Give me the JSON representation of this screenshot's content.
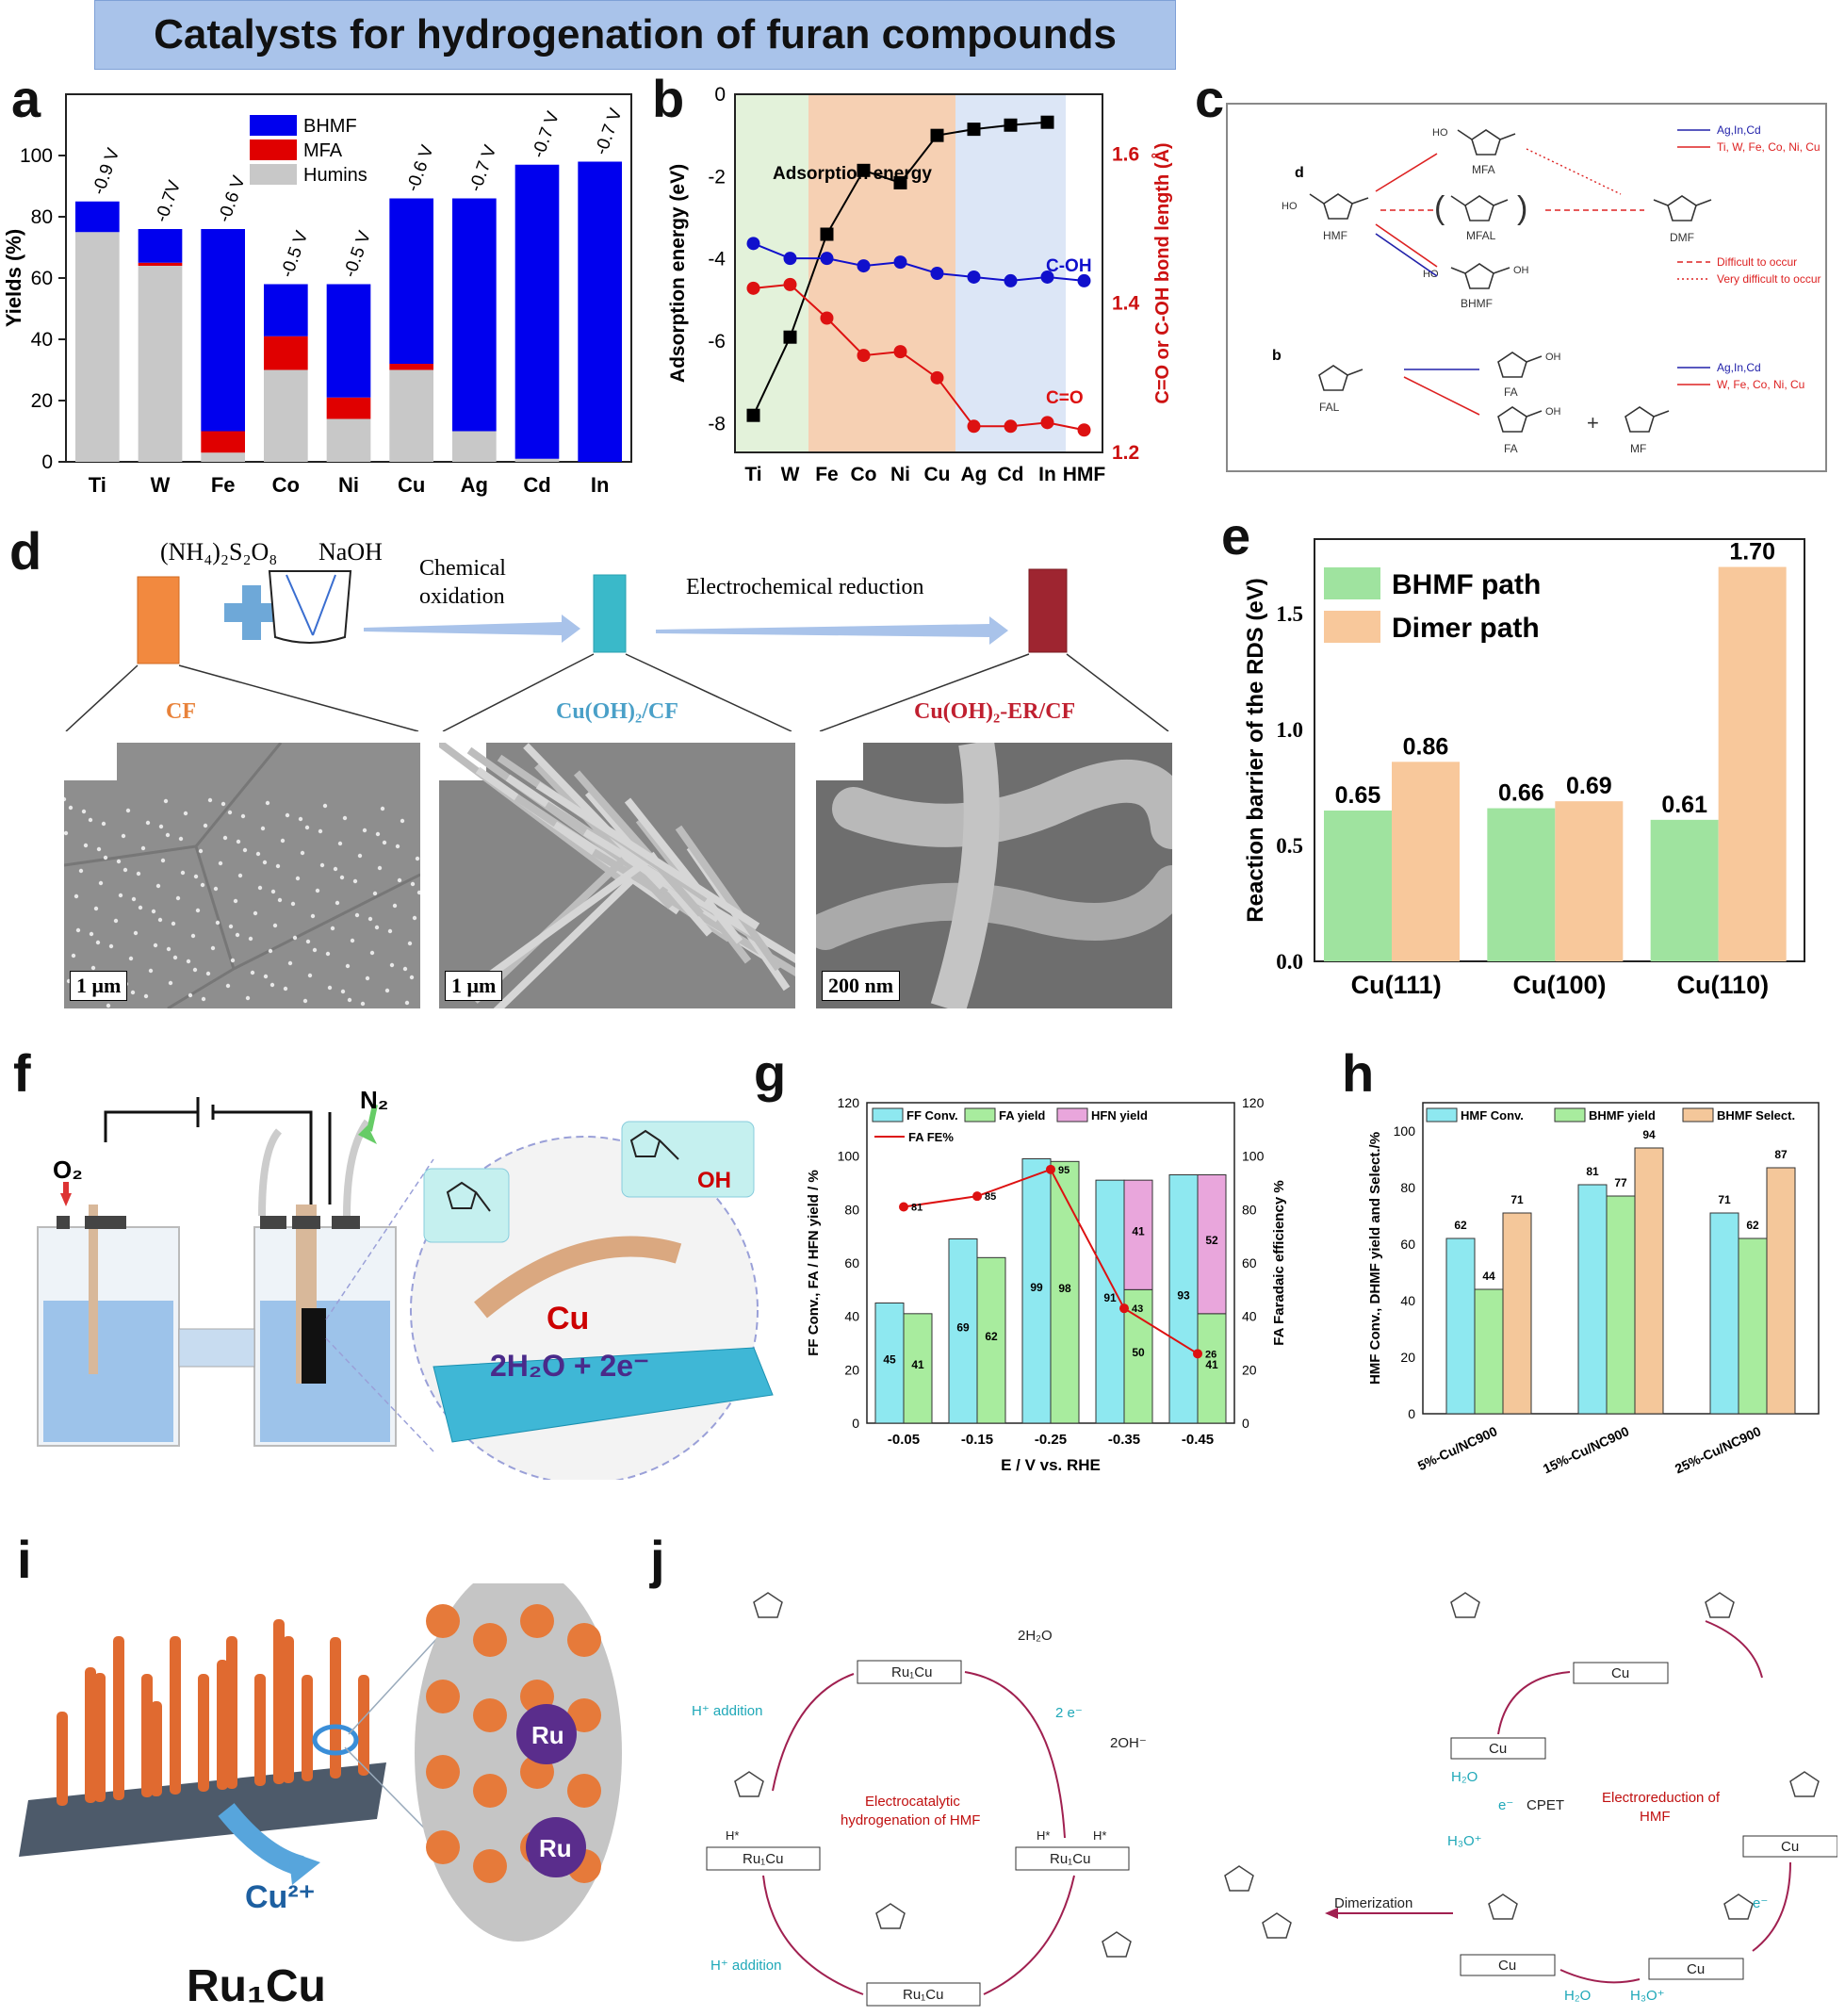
{
  "banner": {
    "title": "Catalysts for hydrogenation of furan compounds"
  },
  "panel_labels": {
    "a": "a",
    "b": "b",
    "c": "c",
    "d": "d",
    "e": "e",
    "f": "f",
    "g": "g",
    "h": "h",
    "i": "i",
    "j": "j"
  },
  "chart_data": [
    {
      "id": "a",
      "type": "bar",
      "stacked": true,
      "categories": [
        "Ti",
        "W",
        "Fe",
        "Co",
        "Ni",
        "Cu",
        "Ag",
        "Cd",
        "In"
      ],
      "series": [
        {
          "name": "Humins",
          "values": [
            75,
            64,
            3,
            30,
            14,
            30,
            10,
            1,
            0
          ],
          "color": "#c8c8c8"
        },
        {
          "name": "MFA",
          "values": [
            0,
            1,
            7,
            11,
            7,
            2,
            0,
            0,
            0
          ],
          "color": "#e00000"
        },
        {
          "name": "BHMF",
          "values": [
            10,
            11,
            66,
            17,
            37,
            54,
            76,
            96,
            98
          ],
          "color": "#0000ee"
        }
      ],
      "bar_labels": [
        "-0.9 V",
        "-0.7V",
        "-0.6 V",
        "-0.5 V",
        "-0.5 V",
        "-0.6 V",
        "-0.7 V",
        "-0.7 V",
        "-0.7 V"
      ],
      "ylabel": "Yields (%)",
      "ylim": [
        0,
        120
      ],
      "yticks": [
        0,
        20,
        40,
        60,
        80,
        100
      ],
      "legend": [
        "BHMF",
        "MFA",
        "Humins"
      ]
    },
    {
      "id": "b",
      "type": "line",
      "categories": [
        "Ti",
        "W",
        "Fe",
        "Co",
        "Ni",
        "Cu",
        "Ag",
        "Cd",
        "In",
        "HMF"
      ],
      "series": [
        {
          "name": "Adsorption energy",
          "axis": "left",
          "values": [
            -7.8,
            -5.9,
            -3.4,
            -1.85,
            -2.15,
            -1.0,
            -0.85,
            -0.75,
            -0.68,
            null
          ],
          "color": "#000000"
        },
        {
          "name": "C-OH",
          "axis": "right",
          "values": [
            1.48,
            1.46,
            1.46,
            1.45,
            1.455,
            1.44,
            1.435,
            1.43,
            1.435,
            1.43
          ],
          "color": "#1010cc"
        },
        {
          "name": "C=O",
          "axis": "right",
          "values": [
            1.42,
            1.425,
            1.38,
            1.33,
            1.335,
            1.3,
            1.235,
            1.235,
            1.24,
            1.23
          ],
          "color": "#dd1111"
        }
      ],
      "annotations": [
        "Adsorption energy",
        "C-OH",
        "C=O"
      ],
      "ylabel": "Adsorption energy (eV)",
      "ylim": [
        -8.7,
        0
      ],
      "yticks": [
        0,
        -2,
        -4,
        -6,
        -8
      ],
      "y2label": "C=O or C-OH bond length (Å)",
      "y2lim": [
        1.2,
        1.68
      ],
      "y2ticks": [
        1.2,
        1.4,
        1.6
      ]
    },
    {
      "id": "e",
      "type": "bar",
      "categories": [
        "Cu(111)",
        "Cu(100)",
        "Cu(110)"
      ],
      "series": [
        {
          "name": "BHMF path",
          "values": [
            0.65,
            0.66,
            0.61
          ],
          "color": "#9fe39f"
        },
        {
          "name": "Dimer path",
          "values": [
            0.86,
            0.69,
            1.7
          ],
          "color": "#f8c89b"
        }
      ],
      "value_labels": [
        [
          "0.65",
          "0.86"
        ],
        [
          "0.66",
          "0.69"
        ],
        [
          "0.61",
          "1.70"
        ]
      ],
      "ylabel": "Reaction barrier of the RDS (eV)",
      "ylim": [
        0,
        1.82
      ],
      "yticks": [
        "0.0",
        "0.5",
        "1.0",
        "1.5"
      ]
    },
    {
      "id": "g",
      "type": "bar",
      "categories": [
        "-0.05",
        "-0.15",
        "-0.25",
        "-0.35",
        "-0.45"
      ],
      "series": [
        {
          "name": "FF Conv.",
          "values": [
            45,
            69,
            99,
            91,
            93
          ],
          "color": "#8ee8f0"
        },
        {
          "name": "FA yield",
          "values": [
            41,
            62,
            98,
            50,
            41
          ],
          "color": "#a8ec9e"
        },
        {
          "name": "HFN yield",
          "values": [
            0,
            0,
            0,
            41,
            52
          ],
          "color": "#e9a6dc"
        }
      ],
      "line": {
        "name": "FA FE%",
        "values": [
          81,
          85,
          95,
          43,
          26
        ],
        "color": "#dd1111"
      },
      "bar_labels": [
        [
          "45",
          "41"
        ],
        [
          "69",
          "62"
        ],
        [
          "99",
          "98"
        ],
        [
          "91",
          "50",
          "41"
        ],
        [
          "93",
          "41",
          "52"
        ]
      ],
      "line_labels": [
        "81",
        "85",
        "95",
        "43",
        "26"
      ],
      "xlabel": "E / V vs. RHE",
      "ylabel": "FF Conv., FA / HFN yield / %",
      "y2label": "FA Faradaic efficiency %",
      "ylim": [
        0,
        120
      ],
      "yticks": [
        0,
        20,
        40,
        60,
        80,
        100,
        120
      ]
    },
    {
      "id": "h",
      "type": "bar",
      "categories": [
        "5%-Cu/NC900",
        "15%-Cu/NC900",
        "25%-Cu/NC900"
      ],
      "series": [
        {
          "name": "HMF Conv.",
          "values": [
            62,
            81,
            71
          ],
          "color": "#8ee8f0"
        },
        {
          "name": "BHMF yield",
          "values": [
            44,
            77,
            62
          ],
          "color": "#a8ec9e"
        },
        {
          "name": "BHMF Select.",
          "values": [
            71,
            94,
            87
          ],
          "color": "#f4c79a"
        }
      ],
      "value_labels": [
        [
          "62",
          "44",
          "71"
        ],
        [
          "81",
          "77",
          "94"
        ],
        [
          "71",
          "62",
          "87"
        ]
      ],
      "ylabel": "HMF Conv., DHMF yield and Select./%",
      "ylim": [
        0,
        110
      ],
      "yticks": [
        0,
        20,
        40,
        60,
        80,
        100
      ]
    }
  ],
  "panel_c": {
    "d_label": "d",
    "b_label": "b",
    "molecules": {
      "mfa": "MFA",
      "hmf": "HMF",
      "mfal": "MFAL",
      "dmf": "DMF",
      "bhmf": "BHMF",
      "fal": "FAL",
      "fa1": "FA",
      "fa2": "FA",
      "mf": "MF"
    },
    "ho": "HO",
    "oh": "OH",
    "paren_l": "(",
    "paren_r": ")",
    "plus": "+",
    "legend_d": [
      "Ag,In,Cd",
      "Ti, W, Fe, Co, Ni, Cu",
      "Difficult to occur",
      "Very difficult to occur"
    ],
    "legend_b": [
      "Ag,In,Cd",
      "W, Fe, Co, Ni, Cu"
    ]
  },
  "panel_d": {
    "reagent1": "(NH₄)₂S₂O₈",
    "reagent2": "NaOH",
    "step1": [
      "Chemical",
      "oxidation"
    ],
    "step2": "Electrochemical reduction",
    "samples": [
      "CF",
      "Cu(OH)₂/CF",
      "Cu(OH)₂-ER/CF"
    ],
    "scale": [
      "1 μm",
      "1 μm",
      "200 nm"
    ]
  },
  "panel_f": {
    "o2": "O₂",
    "n2": "N₂",
    "cu": "Cu",
    "reaction": "2H₂O + 2e⁻",
    "oh": "OH"
  },
  "panel_i": {
    "ion": "Cu²⁺",
    "ru1": "Ru",
    "ru2": "Ru",
    "caption": "Ru₁Cu"
  },
  "panel_j": {
    "left": {
      "box1": "Ru₁Cu",
      "box2": "Ru₁Cu",
      "box3": "Ru₁Cu",
      "box4": "Ru₁Cu",
      "water": "2H₂O",
      "electrons": "2 e⁻",
      "hydroxide": "2OH⁻",
      "h_add1": "H⁺ addition",
      "h_add2": "H⁺ addition",
      "center": [
        "Electrocatalytic",
        "hydrogenation of HMF"
      ],
      "hstar": "H*"
    },
    "right": {
      "box1": "Cu",
      "box2": "Cu",
      "box3": "Cu",
      "box4": "Cu",
      "box5": "Cu",
      "box6": "Cu",
      "cpet": "CPET",
      "e1": "e⁻",
      "e2": "e⁻",
      "h2o_1": "H₂O",
      "h3o_1": "H₃O⁺",
      "h2o_2": "H₂O",
      "h3o_2": "H₃O⁺",
      "dimerization": "Dimerization",
      "center": [
        "Electroreduction of",
        "HMF"
      ]
    }
  },
  "colors": {
    "bhmf": "#0000ee",
    "mfa": "#e00000",
    "humins": "#c8c8c8",
    "zone_green": "#e3f2da",
    "zone_orange": "#f6d0b3",
    "zone_blue": "#dce6f6",
    "dark_red": "#b01030",
    "cyan": "#1fb8c8"
  }
}
